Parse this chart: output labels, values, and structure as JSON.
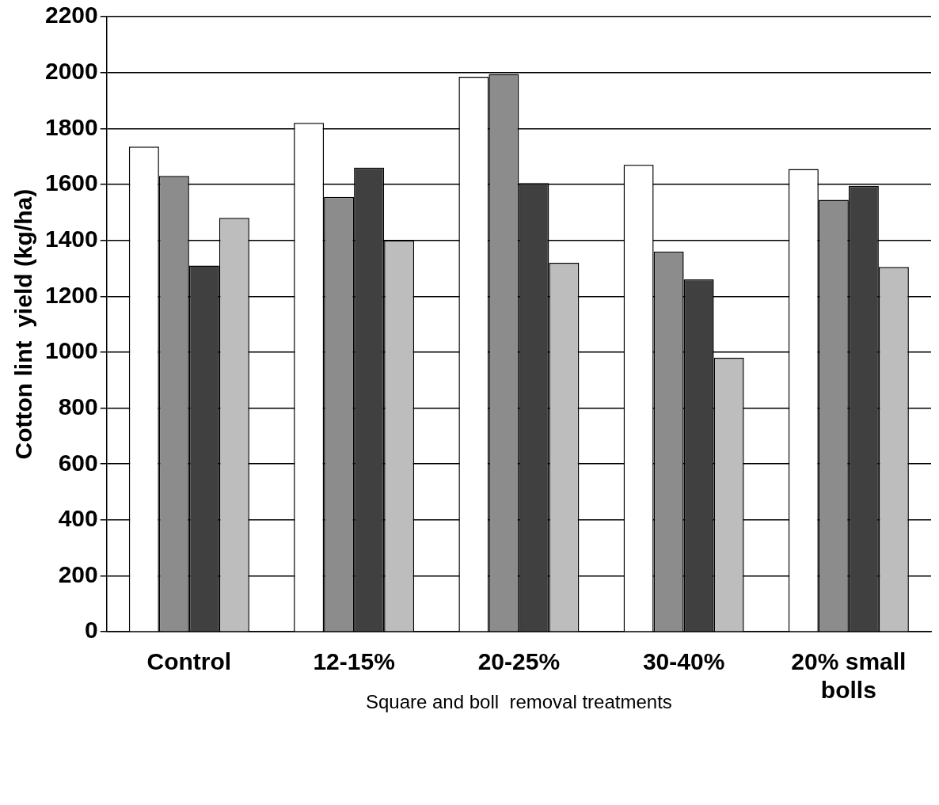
{
  "chart_data": {
    "type": "bar",
    "xlabel": "Square and boll  removal treatments",
    "ylabel": "Cotton lint  yield (kg/ha)",
    "categories": [
      "Control",
      "12-15%",
      "20-25%",
      "30-40%",
      "20% small bolls"
    ],
    "series": [
      {
        "color": "#ffffff",
        "values": [
          1735,
          1820,
          1985,
          1670,
          1655
        ]
      },
      {
        "color": "#8c8c8c",
        "values": [
          1630,
          1555,
          1995,
          1360,
          1545
        ]
      },
      {
        "color": "#404040",
        "values": [
          1310,
          1660,
          1605,
          1260,
          1595
        ]
      },
      {
        "color": "#bdbdbd",
        "values": [
          1480,
          1400,
          1320,
          980,
          1305
        ]
      }
    ],
    "ylim": [
      0,
      2200
    ],
    "yticks": [
      0,
      200,
      400,
      600,
      800,
      1000,
      1200,
      1400,
      1600,
      1800,
      2000,
      2200
    ],
    "grid": "y",
    "legend": false
  }
}
